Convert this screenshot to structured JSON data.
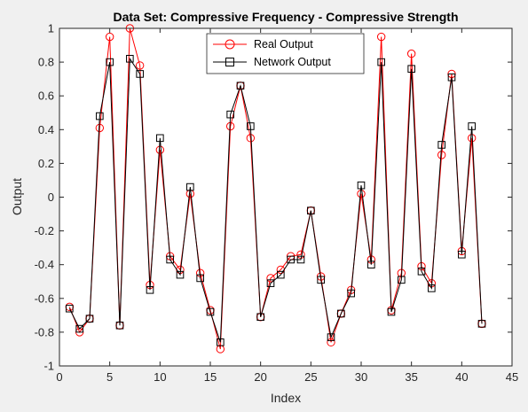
{
  "chart_data": {
    "type": "line",
    "title": "Data Set: Compressive Frequency - Compressive Strength",
    "xlabel": "Index",
    "ylabel": "Output",
    "xlim": [
      0,
      45
    ],
    "ylim": [
      -1,
      1
    ],
    "xticks": [
      "0",
      "5",
      "10",
      "15",
      "20",
      "25",
      "30",
      "35",
      "40",
      "45"
    ],
    "yticks": [
      "-1",
      "-0.8",
      "-0.6",
      "-0.4",
      "-0.2",
      "0",
      "0.2",
      "0.4",
      "0.6",
      "0.8",
      "1"
    ],
    "grid": false,
    "legend": "top-center",
    "x": [
      1,
      2,
      3,
      4,
      5,
      6,
      7,
      8,
      9,
      10,
      11,
      12,
      13,
      14,
      15,
      16,
      17,
      18,
      19,
      20,
      21,
      22,
      23,
      24,
      25,
      26,
      27,
      28,
      29,
      30,
      31,
      32,
      33,
      34,
      35,
      36,
      37,
      38,
      39,
      40,
      41,
      42
    ],
    "series": [
      {
        "name": "Real Output",
        "color": "#ff0000",
        "marker": "circle",
        "values": [
          -0.65,
          -0.8,
          -0.72,
          0.41,
          0.95,
          -0.76,
          1.0,
          0.78,
          -0.52,
          0.28,
          -0.35,
          -0.43,
          0.02,
          -0.45,
          -0.67,
          -0.9,
          0.42,
          0.66,
          0.35,
          -0.71,
          -0.48,
          -0.43,
          -0.35,
          -0.34,
          -0.08,
          -0.47,
          -0.86,
          -0.69,
          -0.55,
          0.02,
          -0.37,
          0.95,
          -0.67,
          -0.45,
          0.85,
          -0.41,
          -0.51,
          0.25,
          0.73,
          -0.32,
          0.35,
          -0.75
        ]
      },
      {
        "name": "Network Output",
        "color": "#000000",
        "marker": "square",
        "values": [
          -0.66,
          -0.78,
          -0.72,
          0.48,
          0.8,
          -0.76,
          0.82,
          0.73,
          -0.55,
          0.35,
          -0.37,
          -0.46,
          0.06,
          -0.48,
          -0.68,
          -0.86,
          0.49,
          0.66,
          0.42,
          -0.71,
          -0.51,
          -0.46,
          -0.37,
          -0.37,
          -0.08,
          -0.49,
          -0.83,
          -0.69,
          -0.57,
          0.07,
          -0.4,
          0.8,
          -0.68,
          -0.49,
          0.76,
          -0.44,
          -0.54,
          0.31,
          0.71,
          -0.34,
          0.42,
          -0.75
        ]
      }
    ]
  }
}
